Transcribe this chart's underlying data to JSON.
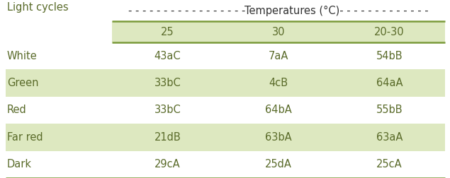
{
  "col_header_left": "Light cycles",
  "temp_header": "- - - - - - - - - - - - - - - - -Temperatures (°C)- - - - - - - - - - - - -",
  "col_headers": [
    "25",
    "30",
    "20-30"
  ],
  "rows": [
    {
      "label": "White",
      "values": [
        "43aC",
        "7aA",
        "54bB"
      ],
      "shaded": false
    },
    {
      "label": "Green",
      "values": [
        "33bC",
        "4cB",
        "64aA"
      ],
      "shaded": true
    },
    {
      "label": "Red",
      "values": [
        "33bC",
        "64bA",
        "55bB"
      ],
      "shaded": false
    },
    {
      "label": "Far red",
      "values": [
        "21dB",
        "63bA",
        "63aA"
      ],
      "shaded": true
    },
    {
      "label": "Dark",
      "values": [
        "29cA",
        "25dA",
        "25cA"
      ],
      "shaded": false
    }
  ],
  "shaded_color": "#dde8c0",
  "header_shaded_color": "#dde8c0",
  "text_color": "#5a6b2a",
  "border_color": "#7a9a3a",
  "bg_color": "#ffffff",
  "font_size": 10.5,
  "header_font_size": 10.5
}
